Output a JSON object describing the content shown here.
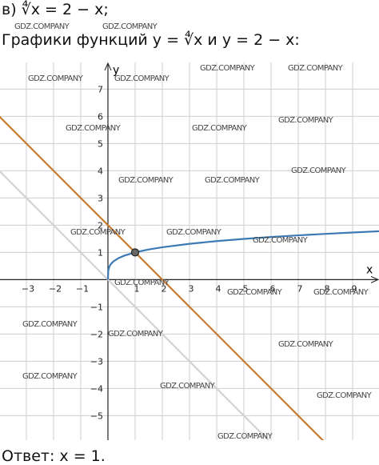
{
  "task": "в) ∜x = 2 − x;",
  "heading": "Графики функций y = ∜x и y = 2 − x:",
  "answer": "Ответ:  x = 1.",
  "watermarks": [
    "GDZ.COMPANY",
    "GDZ.COMPANY",
    "GDZ.COMPANY",
    "GDZ.COMPANY",
    "GDZ.COMPANY",
    "GDZ.COMPANY",
    "GDZ.COMPANY",
    "GDZ.COMPANY",
    "GDZ.COMPANY",
    "GDZ.COMPANY",
    "GDZ.COMPANY",
    "GDZ.COMPANY",
    "GDZ.COMPANY",
    "GDZ.COMPANY",
    "GDZ.COMPANY",
    "GDZ.COMPANY",
    "GDZ.COMPANY",
    "GDZ.COMPANY",
    "GDZ.COMPANY",
    "GDZ.COMPANY",
    "GDZ.COMPANY",
    "GDZ.COMPANY",
    "GDZ.COMPANY",
    "GDZ.COMPANY",
    "GDZ.COMPANY"
  ],
  "chart_data": {
    "type": "line",
    "x_label": "x",
    "y_label": "y",
    "xlim": [
      -3.97,
      9.97
    ],
    "ylim": [
      -5.9,
      7.98
    ],
    "xticks": [
      {
        "value": -3,
        "label": "−3"
      },
      {
        "value": -2,
        "label": "−2"
      },
      {
        "value": -1,
        "label": "−1"
      },
      1,
      2,
      3,
      4,
      5,
      6,
      7,
      8,
      9
    ],
    "yticks": [
      {
        "value": -5,
        "label": "−5"
      },
      {
        "value": -4,
        "label": "−4"
      },
      {
        "value": -3,
        "label": "−3"
      },
      {
        "value": -2,
        "label": "−2"
      },
      {
        "value": -1,
        "label": "−1"
      },
      1,
      2,
      3,
      4,
      5,
      6,
      7
    ],
    "grid": true,
    "series": [
      {
        "color": "#3d7ab5",
        "x": [
          0,
          0.01,
          0.05,
          0.1,
          0.2,
          0.4,
          0.6,
          1,
          1.5,
          2,
          3,
          4,
          5,
          6,
          7,
          8,
          9,
          10
        ],
        "values": [
          0,
          0.316,
          0.473,
          0.562,
          0.669,
          0.795,
          0.88,
          1,
          1.107,
          1.189,
          1.316,
          1.414,
          1.495,
          1.565,
          1.627,
          1.682,
          1.732,
          1.778
        ]
      },
      {
        "color": "#c97a2e",
        "x": [
          -4,
          8
        ],
        "values": [
          6,
          -6
        ]
      },
      {
        "color": "#d2d2d2",
        "x": [
          -4,
          6
        ],
        "values": [
          4,
          -6
        ]
      }
    ],
    "point": {
      "x": 1,
      "y": 1,
      "color": "#666666"
    }
  }
}
